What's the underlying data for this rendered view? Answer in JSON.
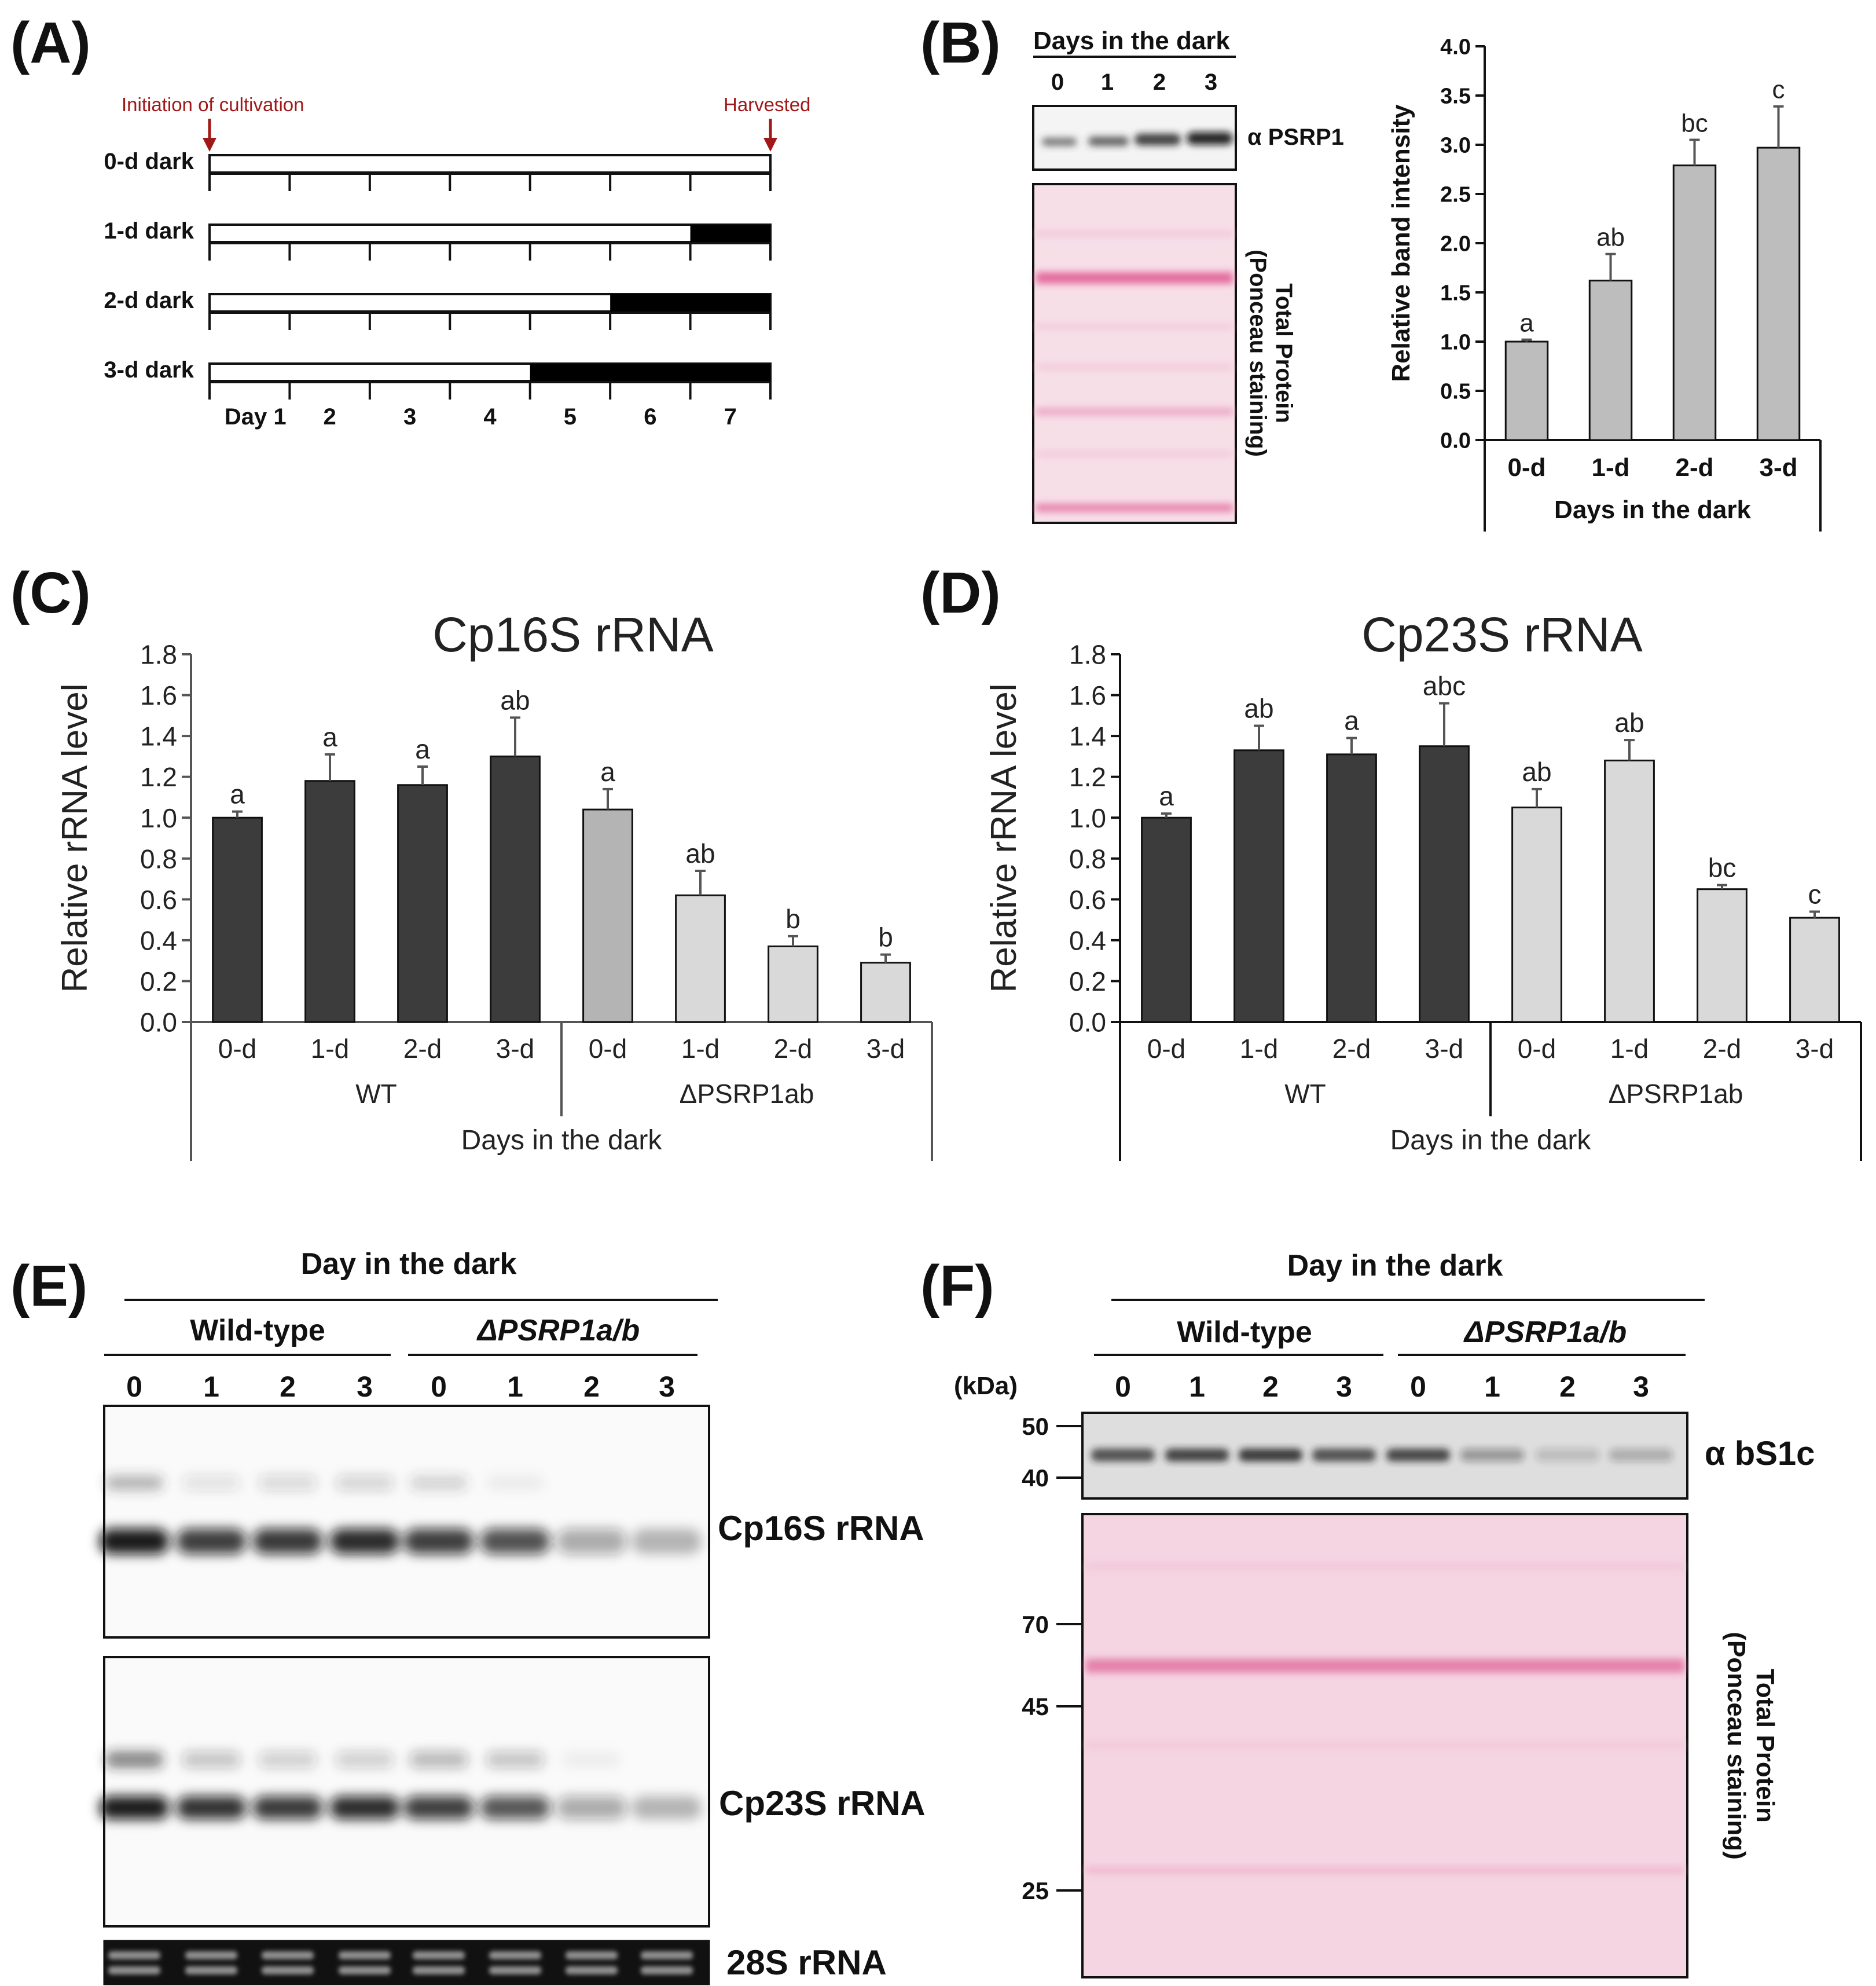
{
  "panels": {
    "A": {
      "label": "(A)",
      "initiation": "Initiation of cultivation",
      "harvested": "Harvested",
      "rows": [
        {
          "label": "0-d dark",
          "dark_days": 0
        },
        {
          "label": "1-d dark",
          "dark_days": 1
        },
        {
          "label": "2-d dark",
          "dark_days": 2
        },
        {
          "label": "3-d dark",
          "dark_days": 3
        }
      ],
      "day_labels": [
        "Day 1",
        "2",
        "3",
        "4",
        "5",
        "6",
        "7"
      ]
    },
    "B": {
      "label": "(B)",
      "blot_header": "Days in the dark",
      "lanes": [
        "0",
        "1",
        "2",
        "3"
      ],
      "antibody": "α PSRP1",
      "stain_line1": "Total Protein",
      "stain_line2": "(Ponceau staining)"
    },
    "C": {
      "label": "(C)"
    },
    "D": {
      "label": "(D)"
    },
    "E": {
      "label": "(E)",
      "header": "Day in the dark",
      "group1": "Wild-type",
      "group2": "ΔPSRP1a/b",
      "lanes": [
        "0",
        "1",
        "2",
        "3",
        "0",
        "1",
        "2",
        "3"
      ],
      "blot1": "Cp16S rRNA",
      "blot2": "Cp23S rRNA",
      "blot3": "28S rRNA"
    },
    "F": {
      "label": "(F)",
      "header": "Day in the dark",
      "group1": "Wild-type",
      "group2": "ΔPSRP1a/b",
      "lanes": [
        "0",
        "1",
        "2",
        "3",
        "0",
        "1",
        "2",
        "3"
      ],
      "kda": "(kDa)",
      "markers_top": [
        "50",
        "40"
      ],
      "markers_bottom": [
        "70",
        "45",
        "25"
      ],
      "antibody": "α bS1c",
      "stain_line1": "Total Protein",
      "stain_line2": "(Ponceau staining)"
    }
  },
  "chart_data": [
    {
      "id": "B",
      "type": "bar",
      "title": "",
      "xlabel": "Days in the dark",
      "ylabel": "Relative band intensity",
      "categories": [
        "0-d",
        "1-d",
        "2-d",
        "3-d"
      ],
      "values": [
        1.0,
        1.62,
        2.79,
        2.97
      ],
      "errors": [
        0.02,
        0.27,
        0.26,
        0.42
      ],
      "significance": [
        "a",
        "ab",
        "bc",
        "c"
      ],
      "ylim": [
        0,
        4.0
      ],
      "yticks": [
        "0.0",
        "0.5",
        "1.0",
        "1.5",
        "2.0",
        "2.5",
        "3.0",
        "3.5",
        "4.0"
      ],
      "bar_color": "#bdbdbd"
    },
    {
      "id": "C",
      "type": "bar",
      "title": "Cp16S rRNA",
      "xlabel": "Days in the dark",
      "ylabel": "Relative rRNA level",
      "categories": [
        "0-d",
        "1-d",
        "2-d",
        "3-d",
        "0-d",
        "1-d",
        "2-d",
        "3-d"
      ],
      "groups": [
        "WT",
        "ΔPSRP1ab"
      ],
      "values": [
        1.0,
        1.18,
        1.16,
        1.3,
        1.04,
        0.62,
        0.37,
        0.29
      ],
      "errors": [
        0.03,
        0.13,
        0.09,
        0.19,
        0.1,
        0.12,
        0.05,
        0.04
      ],
      "significance": [
        "a",
        "a",
        "a",
        "ab",
        "a",
        "ab",
        "b",
        "b"
      ],
      "bar_colors": [
        "#3c3c3c",
        "#3c3c3c",
        "#3c3c3c",
        "#3c3c3c",
        "#b4b4b4",
        "#d9d9d9",
        "#d9d9d9",
        "#d9d9d9"
      ],
      "ylim": [
        0,
        1.8
      ],
      "yticks": [
        "0.0",
        "0.2",
        "0.4",
        "0.6",
        "0.8",
        "1.0",
        "1.2",
        "1.4",
        "1.6",
        "1.8"
      ]
    },
    {
      "id": "D",
      "type": "bar",
      "title": "Cp23S rRNA",
      "xlabel": "Days in the dark",
      "ylabel": "Relative rRNA level",
      "categories": [
        "0-d",
        "1-d",
        "2-d",
        "3-d",
        "0-d",
        "1-d",
        "2-d",
        "3-d"
      ],
      "groups": [
        "WT",
        "ΔPSRP1ab"
      ],
      "values": [
        1.0,
        1.33,
        1.31,
        1.35,
        1.05,
        1.28,
        0.65,
        0.51
      ],
      "errors": [
        0.02,
        0.12,
        0.08,
        0.21,
        0.09,
        0.1,
        0.02,
        0.03
      ],
      "significance": [
        "a",
        "ab",
        "a",
        "abc",
        "ab",
        "ab",
        "bc",
        "c"
      ],
      "bar_colors": [
        "#3c3c3c",
        "#3c3c3c",
        "#3c3c3c",
        "#3c3c3c",
        "#d9d9d9",
        "#d9d9d9",
        "#d9d9d9",
        "#d9d9d9"
      ],
      "ylim": [
        0,
        1.8
      ],
      "yticks": [
        "0.0",
        "0.2",
        "0.4",
        "0.6",
        "0.8",
        "1.0",
        "1.2",
        "1.4",
        "1.6",
        "1.8"
      ]
    }
  ]
}
